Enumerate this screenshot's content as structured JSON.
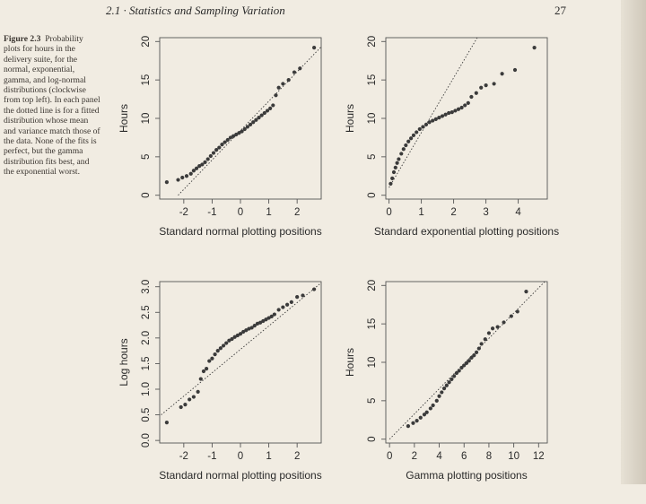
{
  "header": {
    "running_head": "2.1 · Statistics and Sampling Variation",
    "page_number": "27"
  },
  "caption": {
    "label": "Figure 2.3",
    "text": "Probability plots for hours in the delivery suite, for the normal, exponential, gamma, and log-normal distributions (clockwise from top left). In each panel the dotted line is for a fitted distribution whose mean and variance match those of the data. None of the fits is perfect, but the gamma distribution fits best, and the exponential worst."
  },
  "chart_data": [
    {
      "id": "normal",
      "type": "scatter",
      "xlabel": "Standard normal plotting positions",
      "ylabel": "Hours",
      "xlim": [
        -2.85,
        2.85
      ],
      "ylim": [
        -0.5,
        20.5
      ],
      "xticks": [
        -2,
        -1,
        0,
        1,
        2
      ],
      "yticks": [
        0,
        5,
        10,
        15,
        20
      ],
      "reference_line": [
        [
          -2.2,
          0
        ],
        [
          2.9,
          19.5
        ]
      ],
      "x": [
        -2.6,
        -2.2,
        -2.05,
        -1.9,
        -1.75,
        -1.65,
        -1.55,
        -1.45,
        -1.35,
        -1.25,
        -1.15,
        -1.05,
        -0.95,
        -0.85,
        -0.75,
        -0.65,
        -0.55,
        -0.45,
        -0.35,
        -0.25,
        -0.15,
        -0.05,
        0.05,
        0.15,
        0.25,
        0.35,
        0.45,
        0.55,
        0.65,
        0.75,
        0.85,
        0.95,
        1.05,
        1.15,
        1.25,
        1.35,
        1.5,
        1.7,
        1.9,
        2.1,
        2.6
      ],
      "y": [
        1.7,
        2.0,
        2.3,
        2.5,
        2.8,
        3.2,
        3.5,
        3.8,
        4.0,
        4.3,
        4.7,
        5.1,
        5.5,
        5.9,
        6.2,
        6.6,
        6.9,
        7.2,
        7.5,
        7.7,
        7.9,
        8.1,
        8.3,
        8.6,
        8.9,
        9.2,
        9.5,
        9.8,
        10.1,
        10.4,
        10.7,
        11.0,
        11.3,
        11.7,
        13.0,
        14.0,
        14.5,
        15.0,
        16.0,
        16.5,
        19.2
      ]
    },
    {
      "id": "exponential",
      "type": "scatter",
      "xlabel": "Standard exponential plotting positions",
      "ylabel": "Hours",
      "xlim": [
        -0.1,
        4.9
      ],
      "ylim": [
        -0.5,
        20.5
      ],
      "xticks": [
        0,
        1,
        2,
        3,
        4
      ],
      "yticks": [
        0,
        5,
        10,
        15,
        20
      ],
      "reference_line": [
        [
          0,
          1.0
        ],
        [
          2.8,
          21
        ]
      ],
      "x": [
        0.05,
        0.1,
        0.15,
        0.2,
        0.25,
        0.3,
        0.38,
        0.45,
        0.52,
        0.6,
        0.68,
        0.76,
        0.85,
        0.95,
        1.05,
        1.15,
        1.25,
        1.35,
        1.45,
        1.55,
        1.65,
        1.75,
        1.85,
        1.95,
        2.05,
        2.15,
        2.25,
        2.35,
        2.45,
        2.55,
        2.7,
        2.85,
        3.0,
        3.25,
        3.5,
        3.9,
        4.5
      ],
      "y": [
        1.5,
        2.2,
        3.0,
        3.6,
        4.2,
        4.7,
        5.4,
        6.0,
        6.5,
        7.0,
        7.4,
        7.8,
        8.2,
        8.6,
        8.9,
        9.2,
        9.5,
        9.7,
        9.9,
        10.1,
        10.3,
        10.5,
        10.7,
        10.8,
        11.0,
        11.2,
        11.4,
        11.7,
        12.0,
        12.8,
        13.3,
        14.0,
        14.3,
        14.5,
        15.8,
        16.3,
        19.2
      ]
    },
    {
      "id": "lognormal",
      "type": "scatter",
      "xlabel": "Standard normal plotting positions",
      "ylabel": "Log hours",
      "xlim": [
        -2.85,
        2.85
      ],
      "ylim": [
        -0.05,
        3.1
      ],
      "xticks": [
        -2,
        -1,
        0,
        1,
        2
      ],
      "yticks": [
        0.0,
        0.5,
        1.0,
        1.5,
        2.0,
        2.5,
        3.0
      ],
      "ytick_labels": [
        "0.0",
        "0.5",
        "1.0",
        "1.5",
        "2.0",
        "2.5",
        "3.0"
      ],
      "reference_line": [
        [
          -2.8,
          0.5
        ],
        [
          2.9,
          3.1
        ]
      ],
      "x": [
        -2.6,
        -2.1,
        -1.95,
        -1.8,
        -1.65,
        -1.5,
        -1.4,
        -1.3,
        -1.2,
        -1.1,
        -1.0,
        -0.9,
        -0.8,
        -0.7,
        -0.6,
        -0.5,
        -0.4,
        -0.3,
        -0.2,
        -0.1,
        0.0,
        0.1,
        0.2,
        0.3,
        0.4,
        0.5,
        0.6,
        0.7,
        0.8,
        0.9,
        1.0,
        1.1,
        1.2,
        1.35,
        1.5,
        1.65,
        1.8,
        2.0,
        2.2,
        2.6
      ],
      "y": [
        0.35,
        0.65,
        0.7,
        0.8,
        0.85,
        0.95,
        1.2,
        1.35,
        1.4,
        1.55,
        1.6,
        1.68,
        1.75,
        1.8,
        1.85,
        1.9,
        1.95,
        1.98,
        2.02,
        2.05,
        2.08,
        2.12,
        2.15,
        2.18,
        2.2,
        2.24,
        2.28,
        2.3,
        2.33,
        2.36,
        2.39,
        2.42,
        2.46,
        2.55,
        2.6,
        2.65,
        2.7,
        2.8,
        2.83,
        2.95
      ]
    },
    {
      "id": "gamma",
      "type": "scatter",
      "xlabel": "Gamma plotting positions",
      "ylabel": "Hours",
      "xlim": [
        -0.3,
        12.7
      ],
      "ylim": [
        -0.5,
        20.5
      ],
      "xticks": [
        0,
        2,
        4,
        6,
        8,
        10,
        12
      ],
      "yticks": [
        0,
        5,
        10,
        15,
        20
      ],
      "reference_line": [
        [
          0,
          0
        ],
        [
          12.5,
          20.5
        ]
      ],
      "x": [
        1.5,
        1.9,
        2.2,
        2.5,
        2.8,
        3.0,
        3.3,
        3.5,
        3.8,
        4.0,
        4.2,
        4.4,
        4.6,
        4.8,
        5.0,
        5.2,
        5.4,
        5.6,
        5.8,
        6.0,
        6.2,
        6.4,
        6.6,
        6.8,
        7.0,
        7.2,
        7.4,
        7.7,
        8.0,
        8.3,
        8.7,
        9.2,
        9.8,
        10.3,
        11.0
      ],
      "y": [
        1.7,
        2.1,
        2.4,
        2.8,
        3.2,
        3.5,
        4.0,
        4.4,
        5.0,
        5.6,
        6.1,
        6.6,
        7.0,
        7.4,
        7.8,
        8.2,
        8.6,
        8.9,
        9.3,
        9.6,
        9.9,
        10.2,
        10.6,
        10.9,
        11.3,
        11.8,
        12.4,
        13.0,
        13.8,
        14.4,
        14.6,
        15.2,
        16.0,
        16.6,
        19.2
      ]
    }
  ]
}
